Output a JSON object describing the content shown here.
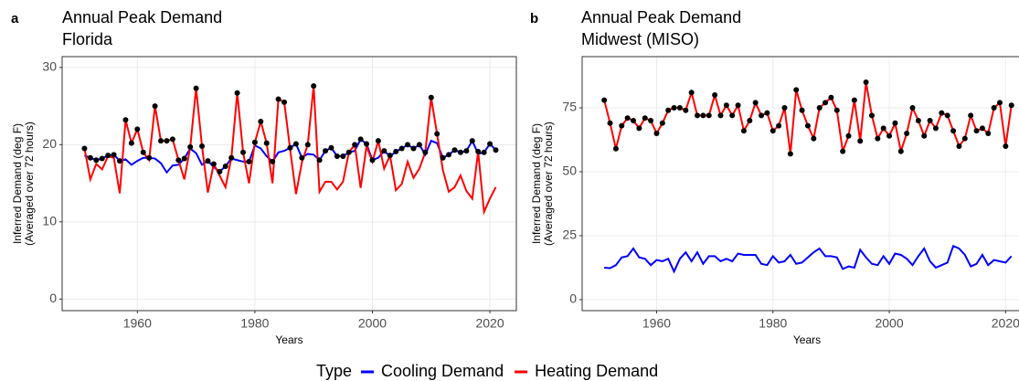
{
  "chart_data": [
    {
      "type": "line",
      "panel": "a",
      "title": "Annual Peak Demand",
      "subtitle": "Florida",
      "xlabel": "Years",
      "ylabel": [
        "Inferred Demand (deg F)",
        "(Averaged over 72 hours)"
      ],
      "x": [
        1951,
        1952,
        1953,
        1954,
        1955,
        1956,
        1957,
        1958,
        1959,
        1960,
        1961,
        1962,
        1963,
        1964,
        1965,
        1966,
        1967,
        1968,
        1969,
        1970,
        1971,
        1972,
        1973,
        1974,
        1975,
        1976,
        1977,
        1978,
        1979,
        1980,
        1981,
        1982,
        1983,
        1984,
        1985,
        1986,
        1987,
        1988,
        1989,
        1990,
        1991,
        1992,
        1993,
        1994,
        1995,
        1996,
        1997,
        1998,
        1999,
        2000,
        2001,
        2002,
        2003,
        2004,
        2005,
        2006,
        2007,
        2008,
        2009,
        2010,
        2011,
        2012,
        2013,
        2014,
        2015,
        2016,
        2017,
        2018,
        2019,
        2020,
        2021
      ],
      "series": [
        {
          "name": "Cooling Demand",
          "color": "#0000ff",
          "values": [
            18.6,
            18.3,
            18.0,
            18.2,
            18.6,
            18.7,
            17.9,
            18.1,
            17.4,
            17.9,
            18.3,
            18.3,
            18.2,
            17.6,
            16.4,
            17.3,
            17.4,
            18.2,
            19.5,
            18.9,
            17.4,
            17.9,
            17.1,
            16.5,
            17.2,
            18.2,
            18.0,
            17.8,
            17.8,
            19.9,
            19.5,
            18.5,
            17.8,
            19.0,
            19.2,
            19.6,
            20.1,
            18.3,
            18.8,
            18.7,
            18.0,
            19.2,
            19.6,
            18.5,
            18.5,
            19.0,
            19.2,
            20.7,
            20.1,
            18.0,
            18.3,
            19.2,
            18.5,
            19.1,
            19.5,
            20.0,
            19.5,
            20.0,
            18.7,
            20.5,
            20.2,
            18.3,
            18.7,
            19.3,
            19.0,
            19.2,
            20.5,
            18.8,
            19.0,
            20.1,
            19.3
          ]
        },
        {
          "name": "Heating Demand",
          "color": "#ff0000",
          "values": [
            19.5,
            15.5,
            17.5,
            16.8,
            18.5,
            18.3,
            13.7,
            23.2,
            20.2,
            22.0,
            19.0,
            18.0,
            25.0,
            20.5,
            20.5,
            20.7,
            18.0,
            15.5,
            19.7,
            27.3,
            19.8,
            13.8,
            17.5,
            16.0,
            14.5,
            18.3,
            26.7,
            19.0,
            15.0,
            20.3,
            23.0,
            20.2,
            15.0,
            25.9,
            25.5,
            19.4,
            13.6,
            17.7,
            20.0,
            27.6,
            13.9,
            15.2,
            15.2,
            14.2,
            15.2,
            19.0,
            20.0,
            14.4,
            19.8,
            17.8,
            20.5,
            16.9,
            18.6,
            14.1,
            14.9,
            17.8,
            15.7,
            16.9,
            19.0,
            26.1,
            21.4,
            16.7,
            13.9,
            14.5,
            16.0,
            14.0,
            13.0,
            19.1,
            11.3,
            13.0,
            14.5
          ]
        }
      ],
      "peak_color": "#000000",
      "xlim": [
        1947.2,
        2024.5
      ],
      "xticks": [
        1960,
        1980,
        2000,
        2020
      ],
      "ylim": [
        -1.5,
        31.4
      ],
      "yticks": [
        0,
        10,
        20,
        30
      ],
      "grid": true
    },
    {
      "type": "line",
      "panel": "b",
      "title": "Annual Peak Demand",
      "subtitle": "Midwest (MISO)",
      "xlabel": "Years",
      "ylabel": [
        "Inferred Demand (deg F)",
        "(Averaged over 72 hours)"
      ],
      "x": [
        1951,
        1952,
        1953,
        1954,
        1955,
        1956,
        1957,
        1958,
        1959,
        1960,
        1961,
        1962,
        1963,
        1964,
        1965,
        1966,
        1967,
        1968,
        1969,
        1970,
        1971,
        1972,
        1973,
        1974,
        1975,
        1976,
        1977,
        1978,
        1979,
        1980,
        1981,
        1982,
        1983,
        1984,
        1985,
        1986,
        1987,
        1988,
        1989,
        1990,
        1991,
        1992,
        1993,
        1994,
        1995,
        1996,
        1997,
        1998,
        1999,
        2000,
        2001,
        2002,
        2003,
        2004,
        2005,
        2006,
        2007,
        2008,
        2009,
        2010,
        2011,
        2012,
        2013,
        2014,
        2015,
        2016,
        2017,
        2018,
        2019,
        2020,
        2021
      ],
      "series": [
        {
          "name": "Cooling Demand",
          "color": "#0000ff",
          "values": [
            12.5,
            12.3,
            13.5,
            16.5,
            17,
            20,
            16.5,
            16,
            13.5,
            15.5,
            15,
            16,
            11,
            16,
            18.5,
            15,
            18.5,
            14,
            17,
            17,
            15,
            16,
            15,
            18,
            17.5,
            17.5,
            17.5,
            14,
            13.5,
            17,
            14.5,
            15,
            17.5,
            14,
            14.5,
            16.5,
            18.5,
            20,
            17,
            17,
            16.5,
            12,
            13,
            12.5,
            19.5,
            16.5,
            14,
            13.5,
            17,
            14,
            18,
            17.5,
            16,
            13.5,
            17,
            20,
            15,
            12.5,
            13.5,
            14.5,
            21,
            20,
            17.5,
            13,
            14,
            17.5,
            13.5,
            15.5,
            15,
            14.5,
            17
          ]
        },
        {
          "name": "Heating Demand",
          "color": "#ff0000",
          "values": [
            78,
            69,
            59,
            68,
            71,
            70,
            67,
            71,
            70,
            65,
            69,
            74,
            75,
            75,
            74,
            81,
            72,
            72,
            72,
            80,
            72,
            76,
            72,
            76,
            66,
            70,
            77,
            72,
            73,
            66,
            68,
            75,
            57,
            82,
            74,
            68,
            63,
            75,
            77,
            79,
            74,
            58,
            64,
            78,
            62,
            85,
            72,
            63,
            67,
            64,
            69,
            58,
            65,
            75,
            70,
            64,
            70,
            67,
            73,
            72,
            66,
            60,
            63,
            72,
            66,
            67,
            65,
            75,
            77,
            60,
            76
          ]
        }
      ],
      "peak_color": "#000000",
      "xlim": [
        1947.2,
        2024.5
      ],
      "xticks": [
        1960,
        1980,
        2000,
        2020
      ],
      "ylim": [
        -4.3,
        95
      ],
      "yticks": [
        0,
        25,
        50,
        75
      ],
      "grid": true
    }
  ],
  "legend": {
    "title": "Type"
  }
}
